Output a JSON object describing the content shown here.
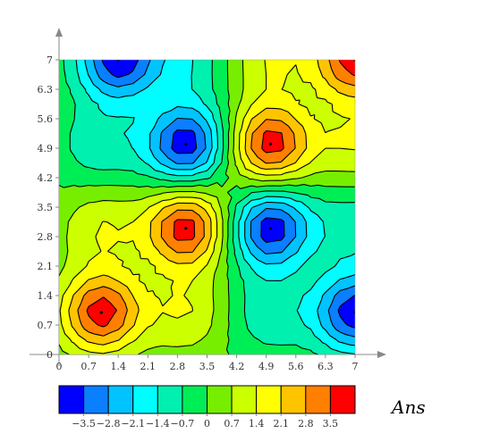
{
  "chart_data": {
    "type": "heatmap",
    "subtype": "filled-contour",
    "title": "Ans",
    "xlabel": "",
    "ylabel": "",
    "xlim": [
      0,
      7
    ],
    "ylim": [
      0,
      7
    ],
    "x_ticks": [
      "0",
      "0.7",
      "1.4",
      "2.1",
      "2.8",
      "3.5",
      "4.2",
      "4.9",
      "5.6",
      "6.3",
      "7"
    ],
    "y_ticks": [
      "0",
      "0.7",
      "1.4",
      "2.1",
      "2.8",
      "3.5",
      "4.2",
      "4.9",
      "5.6",
      "6.3",
      "7"
    ],
    "grid": false,
    "legend": "colorbar-bottom",
    "colorbar": {
      "levels": [
        -4.2,
        -3.5,
        -2.8,
        -2.1,
        -1.4,
        -0.7,
        0,
        0.7,
        1.4,
        2.1,
        2.8,
        3.5,
        4.2
      ],
      "tick_labels": [
        "−3.5",
        "−2.8",
        "−2.1",
        "−1.4",
        "−0.7",
        "0",
        "0.7",
        "1.4",
        "2.1",
        "2.8",
        "3.5"
      ],
      "colors": [
        "#0000ff",
        "#0a7fff",
        "#00c3ff",
        "#00fdff",
        "#00f0b0",
        "#00ee55",
        "#77ee00",
        "#ccff00",
        "#ffff00",
        "#ffc400",
        "#ff8000",
        "#ff0000"
      ]
    },
    "grid_points": 21,
    "extrema": [
      {
        "x": 1.4,
        "y": 7.0,
        "value": -4.1
      },
      {
        "x": 3.0,
        "y": 5.0,
        "value": -4.1
      },
      {
        "x": 5.0,
        "y": 3.0,
        "value": -4.1
      },
      {
        "x": 7.0,
        "y": 1.0,
        "value": -4.1
      },
      {
        "x": 1.0,
        "y": 1.0,
        "value": 4.0
      },
      {
        "x": 3.0,
        "y": 3.0,
        "value": 4.0
      },
      {
        "x": 5.0,
        "y": 5.0,
        "value": 4.0
      },
      {
        "x": 7.0,
        "y": 7.0,
        "value": 4.0
      },
      {
        "x": 3.0,
        "y": 7.0,
        "value": -1.3
      },
      {
        "x": 1.0,
        "y": 5.0,
        "value": -1.3
      },
      {
        "x": 5.0,
        "y": 1.0,
        "value": -1.3
      },
      {
        "x": 7.0,
        "y": 3.0,
        "value": -1.3
      },
      {
        "x": 1.0,
        "y": 3.0,
        "value": 1.4
      },
      {
        "x": 3.0,
        "y": 1.0,
        "value": 1.4
      },
      {
        "x": 5.0,
        "y": 7.0,
        "value": 1.4
      },
      {
        "x": 7.0,
        "y": 5.0,
        "value": 1.4
      }
    ]
  }
}
